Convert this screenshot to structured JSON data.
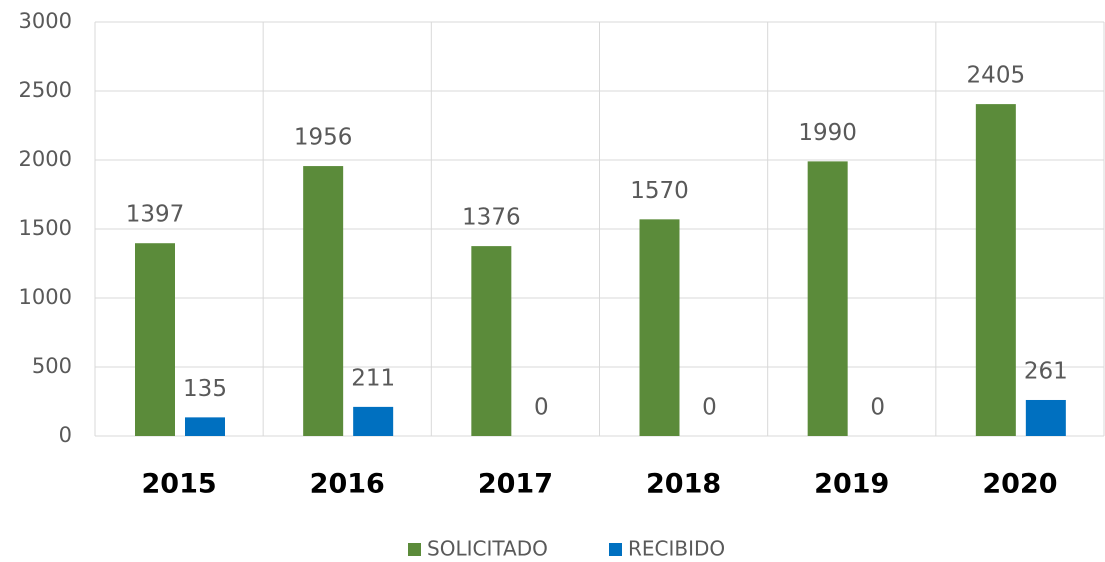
{
  "chart_data": {
    "type": "bar",
    "categories": [
      "2015",
      "2016",
      "2017",
      "2018",
      "2019",
      "2020"
    ],
    "series": [
      {
        "name": "SOLICITADO",
        "color": "#5b8b3a",
        "values": [
          1397,
          1956,
          1376,
          1570,
          1990,
          2405
        ]
      },
      {
        "name": "RECIBIDO",
        "color": "#0070c0",
        "values": [
          135,
          211,
          0,
          0,
          0,
          261
        ]
      }
    ],
    "ylim": [
      0,
      3000
    ],
    "yticks": [
      0,
      500,
      1000,
      1500,
      2000,
      2500,
      3000
    ],
    "grid": true,
    "legend": "bottom"
  }
}
